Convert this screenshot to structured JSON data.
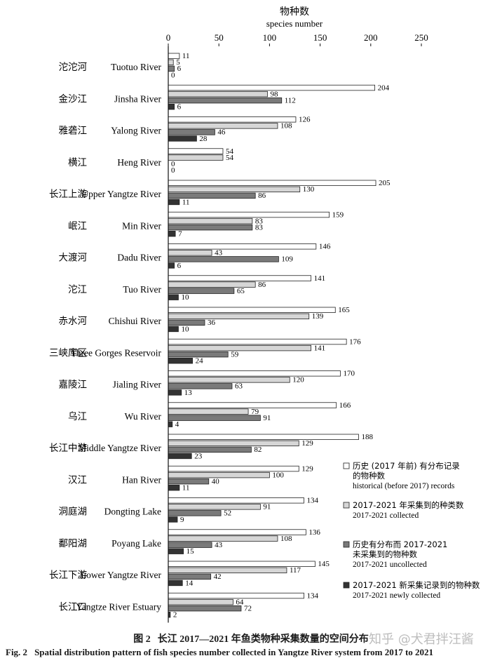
{
  "chart_data": {
    "type": "bar",
    "orientation": "horizontal",
    "xlabel_zh": "物种数",
    "xlabel": "species number",
    "xlim": [
      0,
      250
    ],
    "xticks": [
      0,
      50,
      100,
      150,
      200,
      250
    ],
    "categories": [
      {
        "zh": "沱沱河",
        "en": "Tuotuo River"
      },
      {
        "zh": "金沙江",
        "en": "Jinsha River"
      },
      {
        "zh": "雅砻江",
        "en": "Yalong River"
      },
      {
        "zh": "横江",
        "en": "Heng River"
      },
      {
        "zh": "长江上游",
        "en": "Upper Yangtze River"
      },
      {
        "zh": "岷江",
        "en": "Min River"
      },
      {
        "zh": "大渡河",
        "en": "Dadu River"
      },
      {
        "zh": "沱江",
        "en": "Tuo River"
      },
      {
        "zh": "赤水河",
        "en": "Chishui River"
      },
      {
        "zh": "三峡库区",
        "en": "Three Gorges Reservoir"
      },
      {
        "zh": "嘉陵江",
        "en": "Jialing River"
      },
      {
        "zh": "乌江",
        "en": "Wu River"
      },
      {
        "zh": "长江中游",
        "en": "Middle Yangtze River"
      },
      {
        "zh": "汉江",
        "en": "Han River"
      },
      {
        "zh": "洞庭湖",
        "en": "Dongting Lake"
      },
      {
        "zh": "鄱阳湖",
        "en": "Poyang Lake"
      },
      {
        "zh": "长江下游",
        "en": "Lower Yangtze River"
      },
      {
        "zh": "长江口",
        "en": "Yangtze River Estuary"
      }
    ],
    "series": [
      {
        "name_zh": "历史 (2017 年前) 有分布记录\n的物种数",
        "name": "historical (before 2017) records",
        "color": "#ffffff",
        "values": [
          11,
          204,
          126,
          54,
          205,
          159,
          146,
          141,
          165,
          176,
          170,
          166,
          188,
          129,
          134,
          136,
          145,
          134
        ]
      },
      {
        "name_zh": "2017-2021 年采集到的种类数",
        "name": "2017-2021 collected",
        "color": "#d6d6d6",
        "values": [
          5,
          98,
          108,
          54,
          130,
          83,
          43,
          86,
          139,
          141,
          120,
          79,
          129,
          100,
          91,
          108,
          117,
          64
        ]
      },
      {
        "name_zh": "历史有分布而 2017-2021\n未采集到的物种数",
        "name": "2017-2021 uncollected",
        "color": "#7a7a7a",
        "values": [
          6,
          112,
          46,
          0,
          86,
          83,
          109,
          65,
          36,
          59,
          63,
          91,
          82,
          40,
          52,
          43,
          42,
          72
        ]
      },
      {
        "name_zh": "2017-2021 新采集记录到的物种数",
        "name": "2017-2021 newly collected",
        "color": "#333333",
        "values": [
          0,
          6,
          28,
          0,
          11,
          7,
          6,
          10,
          10,
          24,
          13,
          4,
          23,
          11,
          9,
          15,
          14,
          2
        ]
      }
    ],
    "legend_position": "bottom-right",
    "grid": false
  },
  "caption": {
    "zh_label": "图 2",
    "zh_text": "长江 2017—2021 年鱼类物种采集数量的空间分布",
    "en_label": "Fig. 2",
    "en_text": "Spatial distribution pattern of fish species number collected in Yangtze River system from 2017 to 2021"
  },
  "watermark": "知乎 @犬君拌汪酱"
}
